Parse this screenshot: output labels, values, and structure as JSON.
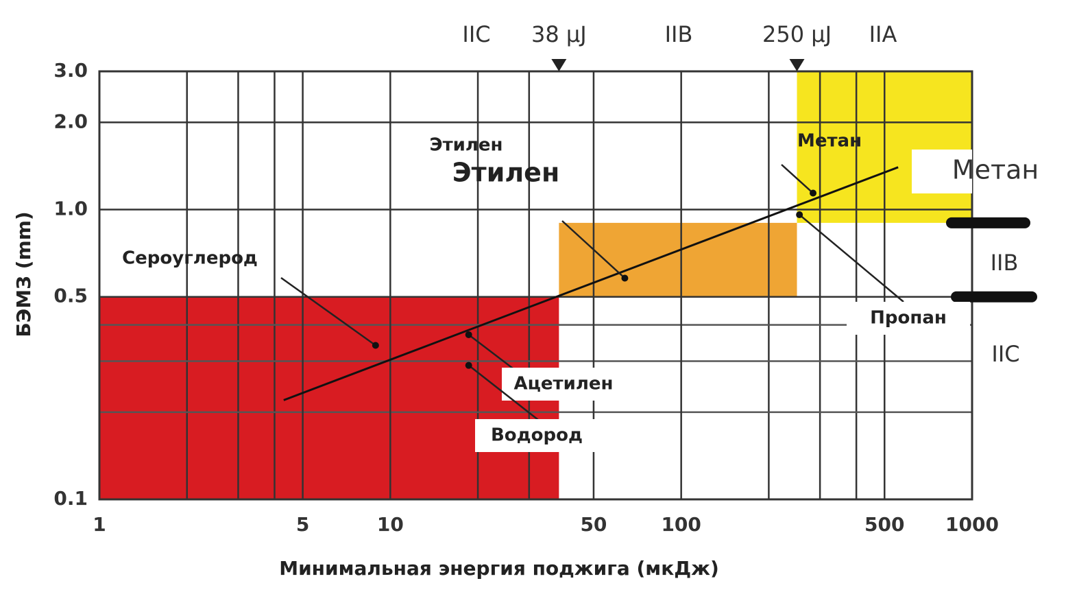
{
  "chart_data": {
    "type": "scatter",
    "x_label": "Минимальная энергия поджига (мкДж)",
    "y_label": "БЭМЗ (mm)",
    "xlim": [
      1,
      1000
    ],
    "ylim": [
      0.1,
      3
    ],
    "log_x": true,
    "log_y": true,
    "grid": true,
    "xticks": [
      1,
      5,
      10,
      50,
      100,
      500,
      1000
    ],
    "yticks": [
      0.1,
      0.5,
      {
        "value": 1,
        "label": "1.0"
      },
      {
        "value": 2,
        "label": "2.0"
      },
      {
        "value": 3,
        "label": "3.0"
      }
    ],
    "minor_xgrid": [
      2,
      3,
      4,
      20,
      30,
      200,
      300,
      400
    ],
    "minor_ygrid": [
      0.2,
      0.3,
      0.4
    ],
    "zones": [
      {
        "x": [
          1,
          38
        ],
        "y": [
          0.1,
          0.5
        ],
        "color": "#d81c22"
      },
      {
        "x": [
          38,
          250
        ],
        "y": [
          0.5,
          0.9
        ],
        "color": "#efa534"
      },
      {
        "x": [
          250,
          1000
        ],
        "y": [
          0.9,
          3
        ],
        "color": "#f6e51f"
      }
    ],
    "markers": [
      {
        "x": 38,
        "label": "38 μJ"
      },
      {
        "x": 250,
        "label": "250 μJ"
      }
    ],
    "group_labels": [
      "IIC",
      "IIB",
      "IIA"
    ],
    "side_labels": [
      "IIB",
      "IIC"
    ],
    "boundaries": [
      0.9,
      0.5
    ],
    "points": [
      {
        "name": "Сероуглерод",
        "x": 8.9,
        "y": 0.34
      },
      {
        "name": "Ацетилен",
        "x": 18.6,
        "y": 0.37
      },
      {
        "name": "Водород",
        "x": 18.6,
        "y": 0.29
      },
      {
        "name": "Этилен",
        "x": 64,
        "y": 0.58
      },
      {
        "name": "Метан",
        "x": 284,
        "y": 1.14
      },
      {
        "name": "Пропан",
        "x": 255,
        "y": 0.96
      }
    ],
    "trend": {
      "x": [
        4.3,
        557
      ],
      "y": [
        0.22,
        1.4
      ]
    },
    "annotations": [
      "Этилен",
      "Метан"
    ]
  }
}
